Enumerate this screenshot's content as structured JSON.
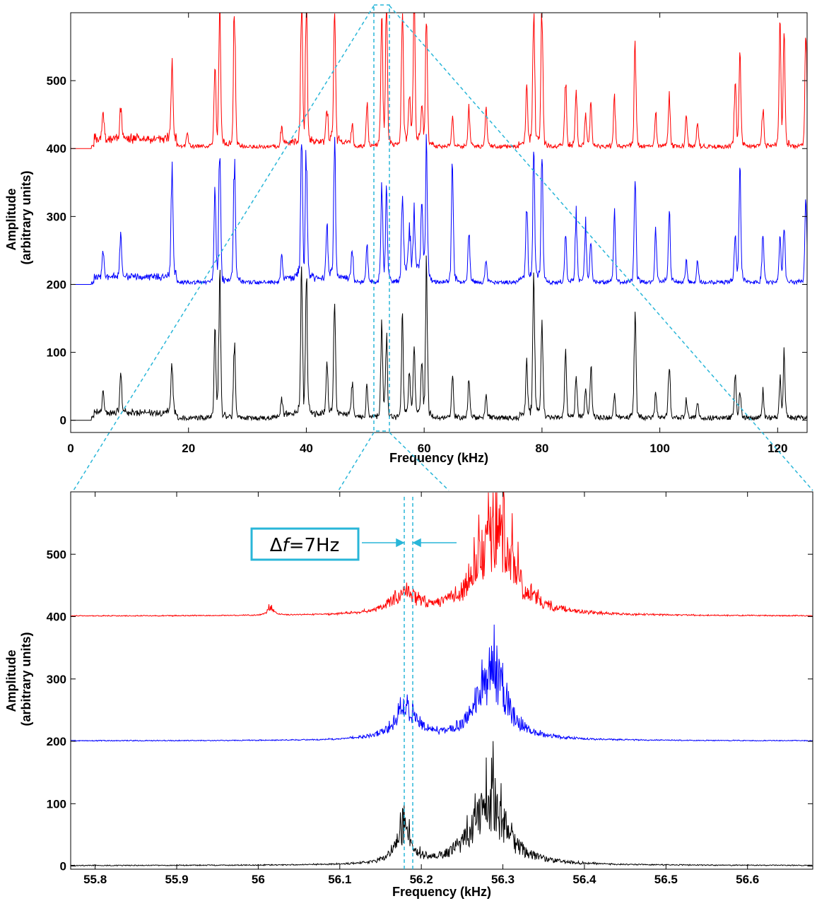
{
  "chart_data": [
    {
      "id": "overview",
      "type": "line",
      "xlabel": "Frequency (kHz)",
      "ylabel": "Amplitude (arbitrary units)",
      "ylabel_lines": [
        "Amplitude",
        "(arbitrary units)"
      ],
      "xlim": [
        0,
        125
      ],
      "ylim": [
        -18,
        600
      ],
      "xticks": [
        0,
        20,
        40,
        60,
        80,
        100,
        120
      ],
      "xtick_labels": [
        "0",
        "20",
        "40",
        "60",
        "80",
        "100",
        "120"
      ],
      "yticks": [
        0,
        100,
        200,
        300,
        400,
        500
      ],
      "ytick_labels": [
        "0",
        "100",
        "200",
        "300",
        "400",
        "500"
      ],
      "grid": false,
      "series": [
        {
          "color": "#000000",
          "offset": 0,
          "start": 3.5,
          "noise": 12,
          "broad": [
            [
              4,
              18,
              8,
              5
            ],
            [
              36,
              48,
              6,
              4
            ],
            [
              56,
              60,
              6,
              2
            ],
            [
              76,
              80,
              4,
              2
            ]
          ],
          "peaks": [
            [
              5.5,
              35
            ],
            [
              8.5,
              58
            ],
            [
              17.2,
              70
            ],
            [
              24.5,
              120
            ],
            [
              25.3,
              200
            ],
            [
              27.8,
              110
            ],
            [
              35.8,
              30
            ],
            [
              39.2,
              200
            ],
            [
              40.0,
              190
            ],
            [
              43.5,
              75
            ],
            [
              44.8,
              150
            ],
            [
              47.8,
              40
            ],
            [
              50.3,
              45
            ],
            [
              52.8,
              140
            ],
            [
              53.6,
              110
            ],
            [
              56.3,
              130
            ],
            [
              57.5,
              60
            ],
            [
              58.3,
              85
            ],
            [
              59.6,
              70
            ],
            [
              60.4,
              200
            ],
            [
              64.8,
              60
            ],
            [
              67.6,
              55
            ],
            [
              70.5,
              30
            ],
            [
              77.4,
              75
            ],
            [
              78.6,
              200
            ],
            [
              80.0,
              140
            ],
            [
              84.0,
              90
            ],
            [
              85.8,
              60
            ],
            [
              87.4,
              40
            ],
            [
              88.3,
              75
            ],
            [
              92.3,
              30
            ],
            [
              95.8,
              150
            ],
            [
              99.3,
              35
            ],
            [
              101.6,
              80
            ],
            [
              104.5,
              25
            ],
            [
              106.4,
              20
            ],
            [
              112.8,
              60
            ],
            [
              113.6,
              35
            ],
            [
              117.5,
              35
            ],
            [
              120.4,
              55
            ],
            [
              121.1,
              85
            ]
          ]
        },
        {
          "color": "#0000ff",
          "offset": 200,
          "start": 3.5,
          "noise": 10,
          "broad": [
            [
              4,
              18,
              9,
              5
            ],
            [
              36,
              48,
              7,
              4
            ],
            [
              56,
              60,
              20,
              2
            ],
            [
              76,
              80,
              5,
              2
            ]
          ],
          "peaks": [
            [
              5.5,
              35
            ],
            [
              8.5,
              60
            ],
            [
              17.2,
              155
            ],
            [
              24.5,
              120
            ],
            [
              25.3,
              190
            ],
            [
              27.8,
              180
            ],
            [
              35.8,
              40
            ],
            [
              39.2,
              190
            ],
            [
              40.0,
              180
            ],
            [
              43.5,
              70
            ],
            [
              44.8,
              180
            ],
            [
              47.8,
              40
            ],
            [
              50.3,
              55
            ],
            [
              52.8,
              140
            ],
            [
              53.6,
              130
            ],
            [
              56.3,
              105
            ],
            [
              57.5,
              60
            ],
            [
              58.3,
              80
            ],
            [
              59.6,
              95
            ],
            [
              60.4,
              190
            ],
            [
              64.8,
              160
            ],
            [
              67.6,
              75
            ],
            [
              70.5,
              30
            ],
            [
              77.4,
              105
            ],
            [
              78.6,
              170
            ],
            [
              80.0,
              170
            ],
            [
              84.0,
              70
            ],
            [
              85.8,
              95
            ],
            [
              87.4,
              80
            ],
            [
              88.3,
              60
            ],
            [
              92.3,
              105
            ],
            [
              95.8,
              150
            ],
            [
              99.3,
              75
            ],
            [
              101.6,
              100
            ],
            [
              104.5,
              30
            ],
            [
              106.4,
              30
            ],
            [
              112.8,
              70
            ],
            [
              113.6,
              170
            ],
            [
              117.5,
              70
            ],
            [
              120.4,
              60
            ],
            [
              121.1,
              75
            ],
            [
              124.8,
              120
            ]
          ]
        },
        {
          "color": "#ff0000",
          "offset": 400,
          "start": 3.5,
          "noise": 10,
          "broad": [
            [
              4,
              18,
              13,
              5
            ],
            [
              36,
              48,
              7,
              4
            ],
            [
              56,
              60,
              8,
              2
            ],
            [
              76,
              80,
              5,
              2
            ]
          ],
          "peaks": [
            [
              5.5,
              40
            ],
            [
              8.5,
              50
            ],
            [
              17.2,
              110
            ],
            [
              19.8,
              20
            ],
            [
              24.5,
              110
            ],
            [
              25.3,
              200
            ],
            [
              27.8,
              200
            ],
            [
              35.8,
              30
            ],
            [
              39.2,
              200
            ],
            [
              40.0,
              200
            ],
            [
              43.5,
              50
            ],
            [
              44.8,
              200
            ],
            [
              47.8,
              25
            ],
            [
              50.3,
              60
            ],
            [
              52.8,
              200
            ],
            [
              53.6,
              200
            ],
            [
              56.3,
              200
            ],
            [
              57.5,
              60
            ],
            [
              58.3,
              200
            ],
            [
              59.6,
              50
            ],
            [
              60.4,
              200
            ],
            [
              64.8,
              40
            ],
            [
              67.6,
              55
            ],
            [
              70.5,
              50
            ],
            [
              77.4,
              80
            ],
            [
              78.6,
              200
            ],
            [
              80.0,
              200
            ],
            [
              84.0,
              100
            ],
            [
              85.8,
              80
            ],
            [
              87.4,
              45
            ],
            [
              88.3,
              60
            ],
            [
              92.3,
              70
            ],
            [
              95.8,
              150
            ],
            [
              99.3,
              45
            ],
            [
              101.6,
              70
            ],
            [
              104.5,
              45
            ],
            [
              106.4,
              35
            ],
            [
              112.8,
              90
            ],
            [
              113.6,
              120
            ],
            [
              117.5,
              55
            ],
            [
              120.4,
              170
            ],
            [
              121.1,
              160
            ],
            [
              124.8,
              160
            ]
          ]
        }
      ]
    },
    {
      "id": "zoom",
      "type": "line",
      "xlabel": "Frequency (kHz)",
      "ylabel": "Amplitude (arbitrary units)",
      "ylabel_lines": [
        "Amplitude",
        "(arbitrary units)"
      ],
      "xlim": [
        55.77,
        56.68
      ],
      "ylim": [
        -5,
        600
      ],
      "xticks": [
        55.8,
        55.9,
        56.0,
        56.1,
        56.2,
        56.3,
        56.4,
        56.5,
        56.6
      ],
      "xtick_labels": [
        "55.8",
        "55.9",
        "56",
        "56.1",
        "56.2",
        "56.3",
        "56.4",
        "56.5",
        "56.6"
      ],
      "yticks": [
        0,
        100,
        200,
        300,
        400,
        500
      ],
      "ytick_labels": [
        "0",
        "100",
        "200",
        "300",
        "400",
        "500"
      ],
      "grid": false,
      "series": [
        {
          "color": "#000000",
          "offset": 0,
          "noise": 1.5,
          "humps": [
            [
              56.178,
              0.012,
              45,
              60
            ],
            [
              56.282,
              0.025,
              95,
              100
            ]
          ]
        },
        {
          "color": "#0000ff",
          "offset": 200,
          "noise": 1.5,
          "humps": [
            [
              56.181,
              0.018,
              45,
              20
            ],
            [
              56.287,
              0.02,
              110,
              80
            ]
          ]
        },
        {
          "color": "#ff0000",
          "offset": 400,
          "noise": 1.5,
          "humps": [
            [
              56.015,
              0.004,
              12,
              8
            ],
            [
              56.18,
              0.02,
              30,
              15
            ],
            [
              56.29,
              0.026,
              130,
              190
            ]
          ]
        }
      ]
    }
  ],
  "annotation": {
    "text_prefix": "Δ",
    "text_var": "f",
    "text_suffix": "=7Hz",
    "color": "#29b6d8"
  }
}
